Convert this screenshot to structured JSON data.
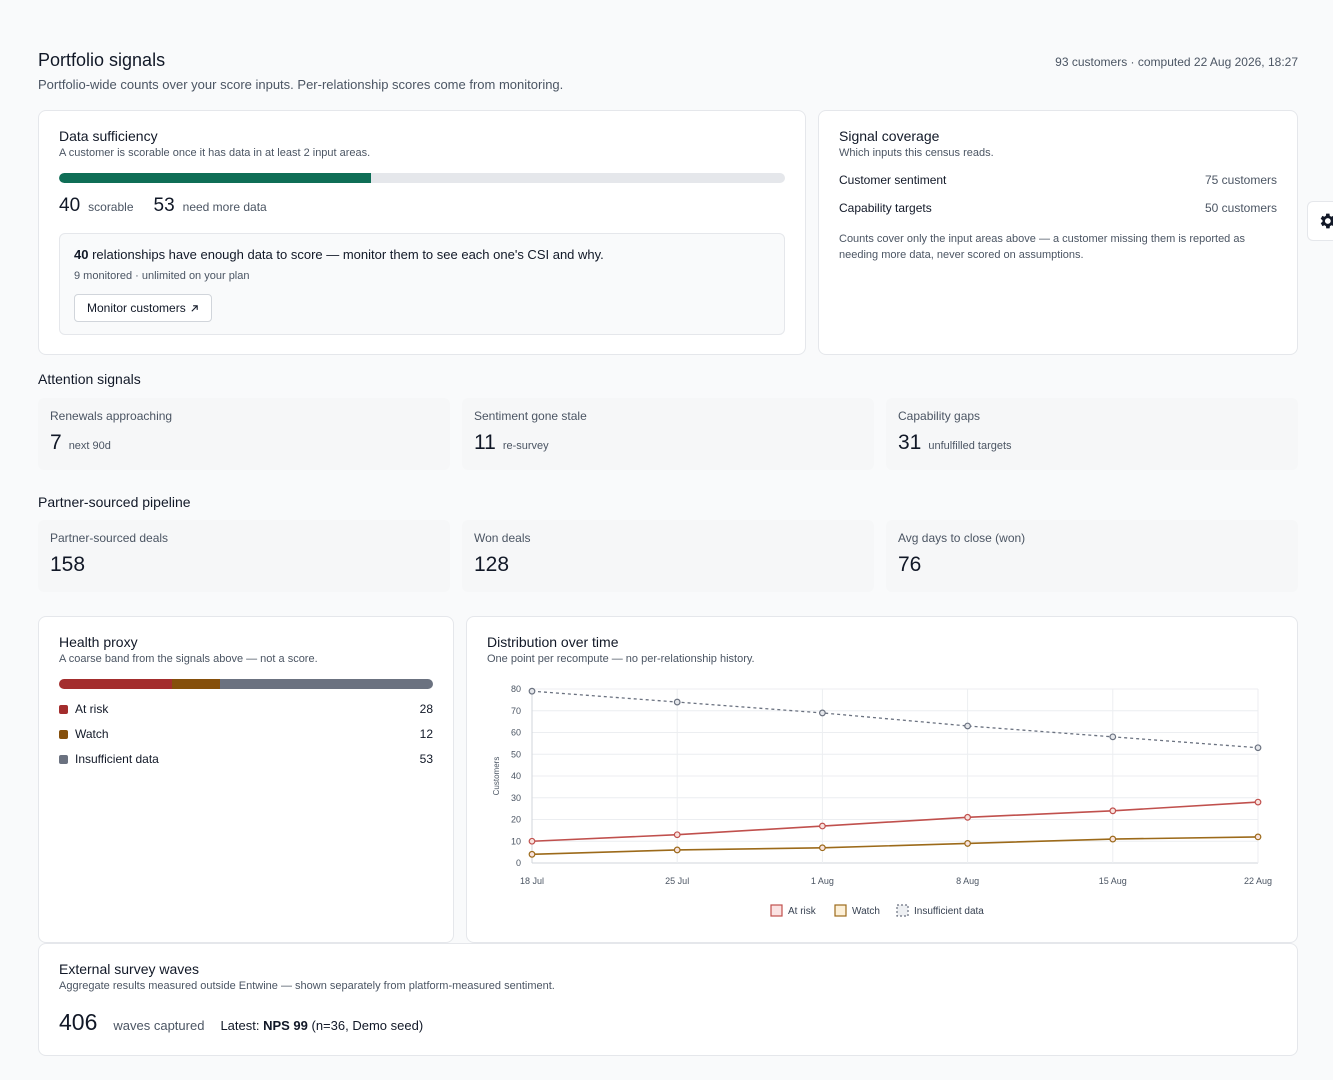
{
  "header": {
    "title": "Portfolio signals",
    "subtitle": "Portfolio-wide counts over your score inputs. Per-relationship scores come from monitoring.",
    "meta": "93 customers · computed 22 Aug 2026, 18:27"
  },
  "sufficiency": {
    "title": "Data sufficiency",
    "subtitle": "A customer is scorable once it has data in at least 2 input areas.",
    "scorable": "40",
    "scorable_label": "scorable",
    "need_more": "53",
    "need_more_label": "need more data",
    "scorable_fraction": 0.43,
    "callout_count": "40",
    "callout_text": " relationships have enough data to score — monitor them to see each one's CSI and why.",
    "callout_meta": "9 monitored · unlimited on your plan",
    "button_label": "Monitor customers",
    "button_icon": "arrow-up-right-icon"
  },
  "coverage": {
    "title": "Signal coverage",
    "subtitle": "Which inputs this census reads.",
    "rows": [
      {
        "label": "Customer sentiment",
        "value": "75 customers"
      },
      {
        "label": "Capability targets",
        "value": "50 customers"
      }
    ],
    "note": "Counts cover only the input areas above — a customer missing them is reported as needing more data, never scored on assumptions."
  },
  "attention": {
    "title": "Attention signals",
    "items": [
      {
        "label": "Renewals approaching",
        "value": "7",
        "unit": "next 90d"
      },
      {
        "label": "Sentiment gone stale",
        "value": "11",
        "unit": "re-survey"
      },
      {
        "label": "Capability gaps",
        "value": "31",
        "unit": "unfulfilled targets"
      }
    ]
  },
  "pipeline": {
    "title": "Partner-sourced pipeline",
    "items": [
      {
        "label": "Partner-sourced deals",
        "value": "158"
      },
      {
        "label": "Won deals",
        "value": "128"
      },
      {
        "label": "Avg days to close (won)",
        "value": "76"
      }
    ]
  },
  "health": {
    "title": "Health proxy",
    "subtitle": "A coarse band from the signals above — not a score.",
    "bands": [
      {
        "label": "At risk",
        "value": "28",
        "color": "#a32d2d"
      },
      {
        "label": "Watch",
        "value": "12",
        "color": "#854f0b"
      },
      {
        "label": "Insufficient data",
        "value": "53",
        "color": "#6b7280"
      }
    ]
  },
  "distribution": {
    "title": "Distribution over time",
    "subtitle": "One point per recompute — no per-relationship history."
  },
  "chart_data": {
    "type": "line",
    "x": [
      "18 Jul",
      "25 Jul",
      "1 Aug",
      "8 Aug",
      "15 Aug",
      "22 Aug"
    ],
    "ylabel": "Customers",
    "ylim": [
      0,
      80
    ],
    "yticks": [
      0,
      10,
      20,
      30,
      40,
      50,
      60,
      70,
      80
    ],
    "grid": true,
    "legend": "bottom",
    "series": [
      {
        "name": "At risk",
        "values": [
          10,
          13,
          17,
          21,
          24,
          28
        ],
        "color": "#c0504d",
        "dashed": false
      },
      {
        "name": "Watch",
        "values": [
          4,
          6,
          7,
          9,
          11,
          12
        ],
        "color": "#9c6a1a",
        "dashed": false
      },
      {
        "name": "Insufficient data",
        "values": [
          79,
          74,
          69,
          63,
          58,
          53
        ],
        "color": "#6b7280",
        "dashed": true
      }
    ]
  },
  "external": {
    "title": "External survey waves",
    "subtitle": "Aggregate results measured outside Entwine — shown separately from platform-measured sentiment.",
    "waves": "406",
    "waves_label": "waves captured",
    "latest_prefix": "Latest: ",
    "latest_value": "NPS 99",
    "latest_suffix": " (n=36, Demo seed)"
  },
  "settings_icon": "gear-icon"
}
